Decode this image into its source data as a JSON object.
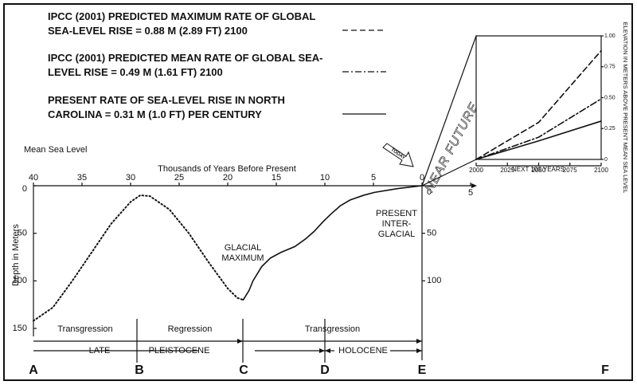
{
  "chart_data": [
    {
      "type": "line",
      "y_axis_title": "Mean Sea Level",
      "x_label": "Thousands of Years Before Present",
      "y_label": "Depth in Meters",
      "xlim": [
        40,
        -5
      ],
      "xticks": [
        40,
        35,
        30,
        25,
        20,
        15,
        10,
        5,
        0,
        {
          "value": -5,
          "label": "5"
        }
      ],
      "ylim": [
        0,
        150
      ],
      "y_inverted": true,
      "yticks": [
        0,
        50,
        100,
        150
      ],
      "y2ticks": [
        0,
        50,
        100
      ],
      "series": [
        {
          "style": "dotted",
          "color": "#111111",
          "x": [
            40,
            38,
            36,
            34,
            32,
            30,
            29,
            28,
            26,
            24,
            22,
            20,
            19,
            18.4
          ],
          "values": [
            142,
            128,
            100,
            70,
            40,
            17,
            10,
            11,
            25,
            50,
            80,
            108,
            118,
            120
          ]
        },
        {
          "style": "solid",
          "color": "#111111",
          "x": [
            18.4,
            17.8,
            17.4,
            16.5,
            15.6,
            14.5,
            13.1,
            12,
            11.1,
            10.2,
            9.4,
            8.4,
            7.4,
            6,
            4.9,
            2.5,
            0
          ],
          "values": [
            120,
            110,
            100,
            85,
            76,
            70,
            64,
            56,
            48,
            38,
            30,
            21,
            15,
            10,
            7,
            3,
            0
          ]
        }
      ],
      "annotations": [
        "GLACIAL MAXIMUM",
        "PRESENT INTER-GLACIAL",
        "TODAY",
        "NEAR FUTURE"
      ],
      "stages": [
        "Transgression",
        "Regression",
        "Transgression"
      ],
      "epochs": [
        "LATE",
        "PLEISTOCENE",
        "HOLOCENE"
      ],
      "points": [
        "A",
        "B",
        "C",
        "D",
        "E",
        "F"
      ]
    },
    {
      "type": "line",
      "x_label": "NEXT 100 YEARS",
      "y_label": "ELEVATION IN METERS ABOVE PRESENT MEAN SEA LEVEL",
      "x": [
        2000,
        2050,
        2100
      ],
      "xlim": [
        2000,
        2100
      ],
      "xticks": [
        2000,
        2025,
        2050,
        2075,
        2100
      ],
      "ylim": [
        0,
        1
      ],
      "yticks": [
        0,
        0.25,
        {
          "value": 0.5,
          "label": "0.50"
        },
        0.75,
        {
          "value": 1,
          "label": "1.00"
        }
      ],
      "series": [
        {
          "name": "IPCC (2001) PREDICTED MAXIMUM RATE OF GLOBAL SEA-LEVEL RISE = 0.88 M (2.89 FT) 2100",
          "style": "dashed",
          "color": "#111111",
          "values": [
            0,
            0.3,
            0.88
          ]
        },
        {
          "name": "IPCC (2001) PREDICTED MEAN RATE OF GLOBAL SEA-LEVEL RISE = 0.49 M (1.61 FT) 2100",
          "style": "dashdot",
          "color": "#111111",
          "values": [
            0,
            0.18,
            0.49
          ]
        },
        {
          "name": "PRESENT RATE OF SEA-LEVEL RISE IN NORTH CAROLINA = 0.31 M (1.0 FT) PER CENTURY",
          "style": "solid",
          "color": "#111111",
          "values": [
            0,
            0.15,
            0.31
          ]
        }
      ]
    }
  ]
}
